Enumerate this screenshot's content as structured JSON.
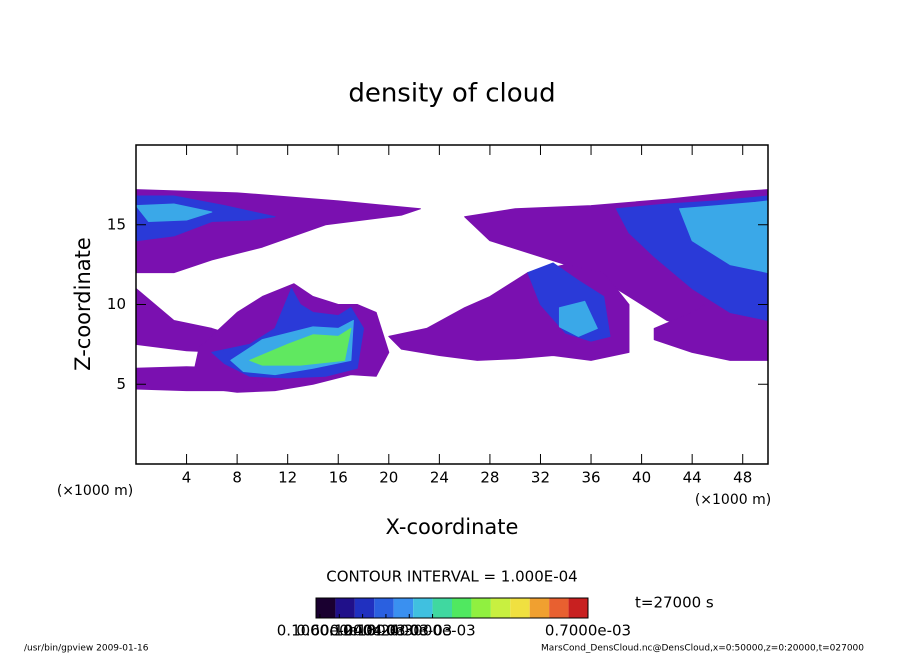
{
  "chart_data": {
    "type": "contour",
    "title": "density of cloud",
    "x_label": "X-coordinate",
    "y_label": "Z-coordinate",
    "x_unit": "(×1000 m)",
    "y_unit": "(×1000 m)",
    "xlim": [
      0,
      50
    ],
    "ylim": [
      0,
      20
    ],
    "xticks": [
      4,
      8,
      12,
      16,
      20,
      24,
      28,
      32,
      36,
      40,
      44,
      48
    ],
    "yticks": [
      5,
      10,
      15
    ],
    "levels": [
      0.0001,
      0.0002,
      0.0003,
      0.0004
    ],
    "level_colors": [
      "#7a10b0",
      "#2a3ad8",
      "#3aa8e8",
      "#60e860",
      "#e8e040"
    ],
    "regions": [
      {
        "value": 5e-05,
        "x": [
          0,
          8,
          16,
          22.5,
          21,
          15,
          10,
          6,
          3,
          0
        ],
        "z": [
          17.2,
          17,
          16.5,
          16,
          15.6,
          15,
          13.6,
          12.8,
          12,
          12
        ]
      },
      {
        "value": 5e-05,
        "x": [
          0,
          3,
          6,
          8,
          7,
          4,
          0
        ],
        "z": [
          11,
          9,
          8.5,
          8,
          7,
          7.1,
          7.5
        ]
      },
      {
        "value": 5e-05,
        "x": [
          5,
          8,
          10,
          12.5,
          14,
          16,
          17.5,
          19,
          20,
          19,
          17,
          14,
          11,
          8,
          6,
          4.5
        ],
        "z": [
          7.3,
          9.5,
          10.5,
          11.3,
          10.5,
          10,
          10,
          9.5,
          7,
          5.5,
          5.6,
          5,
          4.6,
          4.5,
          4.7,
          5.5
        ]
      },
      {
        "value": 5e-05,
        "x": [
          0,
          4,
          8,
          10,
          8,
          4,
          0
        ],
        "z": [
          6,
          6.1,
          6,
          5,
          4.6,
          4.6,
          4.7
        ]
      },
      {
        "value": 5e-05,
        "x": [
          26,
          30,
          36,
          42,
          48,
          50,
          50,
          46,
          42,
          38,
          34,
          30,
          28
        ],
        "z": [
          15.5,
          16,
          16.2,
          16.6,
          17.1,
          17.2,
          9,
          8,
          9,
          11,
          12.5,
          13.5,
          14
        ]
      },
      {
        "value": 5e-05,
        "x": [
          20,
          23,
          26,
          28,
          30,
          31,
          34,
          37,
          39,
          39,
          36,
          33,
          30,
          27,
          24,
          21
        ],
        "z": [
          8,
          8.5,
          9.8,
          10.5,
          11.5,
          12,
          12.5,
          12,
          10,
          7,
          6.5,
          6.8,
          6.6,
          6.5,
          6.8,
          7.2
        ]
      },
      {
        "value": 5e-05,
        "x": [
          41,
          44,
          47,
          50,
          50,
          47,
          44,
          41
        ],
        "z": [
          8.5,
          9.5,
          11,
          12,
          6.5,
          6.5,
          7,
          7.8
        ]
      },
      {
        "value": 0.00015,
        "x": [
          0,
          3,
          7,
          11,
          9,
          6,
          3,
          0
        ],
        "z": [
          16.8,
          16.8,
          16.2,
          15.5,
          15.3,
          15.2,
          14.3,
          14
        ]
      },
      {
        "value": 0.00025,
        "x": [
          0,
          3,
          6,
          4,
          1
        ],
        "z": [
          16.2,
          16.3,
          15.8,
          15.3,
          15.2
        ]
      },
      {
        "value": 0.00015,
        "x": [
          6,
          9,
          11,
          12.3,
          13,
          14,
          16,
          17,
          18,
          17.5,
          15,
          12,
          9,
          7
        ],
        "z": [
          7,
          7.5,
          8.5,
          11,
          10,
          9.5,
          9.3,
          9.8,
          8.5,
          6,
          5.5,
          5.4,
          5.5,
          6.3
        ]
      },
      {
        "value": 0.00025,
        "x": [
          7.5,
          10,
          12,
          14,
          16,
          17.2,
          17,
          14,
          11,
          8.5
        ],
        "z": [
          6.5,
          7.8,
          8.2,
          8.6,
          8.5,
          9,
          6.5,
          6,
          5.6,
          5.8
        ]
      },
      {
        "value": 0.00035,
        "x": [
          9,
          12,
          14,
          16,
          17,
          16.5,
          13,
          10
        ],
        "z": [
          6.5,
          7.5,
          8.1,
          8,
          8.5,
          6.5,
          6.2,
          6.2
        ]
      },
      {
        "value": 0.00015,
        "x": [
          31,
          33,
          35,
          37,
          37.5,
          36,
          34,
          32
        ],
        "z": [
          12,
          12.6,
          11.5,
          10.5,
          8,
          7.7,
          8.2,
          10
        ]
      },
      {
        "value": 0.00025,
        "x": [
          33.5,
          35.5,
          36.5,
          35,
          33.5
        ],
        "z": [
          9.8,
          10.2,
          8.5,
          8,
          8.6
        ]
      },
      {
        "value": 0.00015,
        "x": [
          38,
          42,
          46,
          50,
          50,
          47,
          44,
          41,
          39
        ],
        "z": [
          16,
          16.3,
          16.5,
          16.8,
          9,
          9.5,
          11,
          13,
          14.5
        ]
      },
      {
        "value": 0.00025,
        "x": [
          43,
          46,
          49,
          50,
          50,
          47,
          44
        ],
        "z": [
          16,
          16.2,
          16.4,
          16.5,
          12,
          12.5,
          14
        ]
      }
    ],
    "contour_interval": "CONTOUR INTERVAL = 1.000E-04",
    "time_label": "t=27000 s",
    "colorbar_colors": [
      "#1a0030",
      "#20108a",
      "#2030c0",
      "#2a60e0",
      "#3a90f0",
      "#40c0e0",
      "#40d8a0",
      "#50e860",
      "#90f040",
      "#c8f040",
      "#f0e040",
      "#f0a030",
      "#e86030",
      "#c82020"
    ],
    "colorbar_lim": [
      0,
      0.0007
    ],
    "colorbar_ticks": [
      {
        "value": 1e-05,
        "label": "0.1000e-04"
      },
      {
        "value": 6e-05,
        "label": "0.6000e-04"
      },
      {
        "value": 0.00012,
        "label": "0.1200e-03"
      },
      {
        "value": 0.00018,
        "label": "0.1800e-03"
      },
      {
        "value": 0.00024,
        "label": "0.2400e-03"
      },
      {
        "value": 0.0003,
        "label": "0.3000e-03"
      },
      {
        "value": 0.0007,
        "label": "0.7000e-03"
      }
    ],
    "footer_left": "/usr/bin/gpview  2009-01-16",
    "footer_right": "MarsCond_DensCloud.nc@DensCloud,x=0:50000,z=0:20000,t=027000"
  }
}
